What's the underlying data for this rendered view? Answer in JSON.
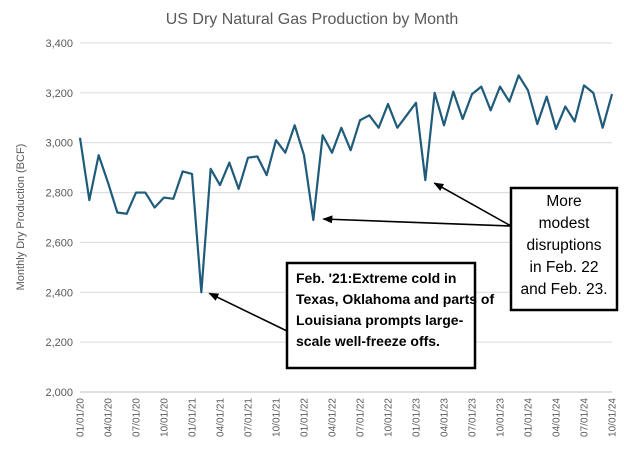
{
  "chart_data": {
    "type": "line",
    "title": "US Dry Natural Gas Production by Month",
    "xlabel": "",
    "ylabel": "Monthly Dry Production (BCF)",
    "ylim": [
      2000,
      3400
    ],
    "yticks": [
      "2,000",
      "2,200",
      "2,400",
      "2,600",
      "2,800",
      "3,000",
      "3,200",
      "3,400"
    ],
    "xticks": [
      "01/01/20",
      "04/01/20",
      "07/01/20",
      "10/01/20",
      "01/01/21",
      "04/01/21",
      "07/01/21",
      "10/01/21",
      "01/01/22",
      "04/01/22",
      "07/01/22",
      "10/01/22",
      "01/01/23",
      "04/01/23",
      "07/01/23",
      "10/01/23",
      "01/01/24",
      "04/01/24",
      "07/01/24",
      "10/01/24"
    ],
    "grid": "horizontal",
    "series_color": "#1f5b7a",
    "series": [
      {
        "x": [
          "2020-01",
          "2020-02",
          "2020-03",
          "2020-04",
          "2020-05",
          "2020-06",
          "2020-07",
          "2020-08",
          "2020-09",
          "2020-10",
          "2020-11",
          "2020-12",
          "2021-01",
          "2021-02",
          "2021-03",
          "2021-04",
          "2021-05",
          "2021-06",
          "2021-07",
          "2021-08",
          "2021-09",
          "2021-10",
          "2021-11",
          "2021-12",
          "2022-01",
          "2022-02",
          "2022-03",
          "2022-04",
          "2022-05",
          "2022-06",
          "2022-07",
          "2022-08",
          "2022-09",
          "2022-10",
          "2022-11",
          "2022-12",
          "2023-01",
          "2023-02",
          "2023-03",
          "2023-04",
          "2023-05",
          "2023-06",
          "2023-07",
          "2023-08",
          "2023-09",
          "2023-10",
          "2023-11",
          "2023-12",
          "2024-01",
          "2024-02",
          "2024-03",
          "2024-04",
          "2024-05",
          "2024-06",
          "2024-07",
          "2024-08",
          "2024-09",
          "2024-10"
        ],
        "values": [
          3020,
          2770,
          2950,
          2840,
          2720,
          2715,
          2800,
          2800,
          2740,
          2780,
          2775,
          2885,
          2875,
          2400,
          2895,
          2830,
          2920,
          2815,
          2940,
          2945,
          2870,
          3010,
          2960,
          3070,
          2950,
          2690,
          3030,
          2960,
          3060,
          2970,
          3090,
          3110,
          3060,
          3155,
          3060,
          3110,
          3160,
          2850,
          3200,
          3070,
          3205,
          3095,
          3195,
          3225,
          3130,
          3225,
          3165,
          3270,
          3210,
          3075,
          3185,
          3055,
          3145,
          3085,
          3230,
          3200,
          3060,
          3195
        ]
      }
    ],
    "annotations": [
      {
        "lines": [
          "Feb. '21:Extreme cold in",
          "Texas, Oklahoma and parts of",
          "Louisiana prompts large-",
          "scale well-freeze offs."
        ],
        "point": "2021-02"
      },
      {
        "lines": [
          "More",
          "modest",
          "disruptions",
          "in Feb. 22",
          "and Feb. 23."
        ],
        "points": [
          "2022-02",
          "2023-02"
        ]
      }
    ]
  }
}
